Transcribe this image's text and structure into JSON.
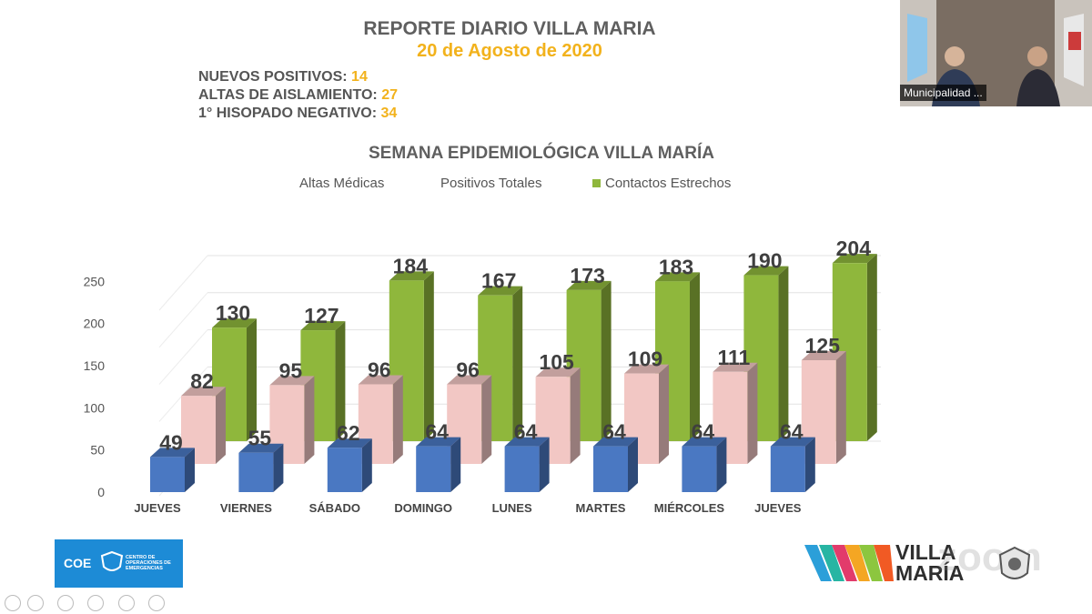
{
  "report": {
    "title": "REPORTE DIARIO VILLA MARIA",
    "date": "20 de Agosto de 2020",
    "stats": [
      {
        "label": "NUEVOS POSITIVOS:",
        "value": "14"
      },
      {
        "label": "ALTAS DE AISLAMIENTO:",
        "value": "27"
      },
      {
        "label": "1° HISOPADO NEGATIVO:",
        "value": "34"
      }
    ]
  },
  "video": {
    "participant": "Municipalidad ..."
  },
  "footer": {
    "coe": {
      "acronym": "COE",
      "subtitle": "CENTRO DE OPERACIONES DE EMERGENCIAS"
    },
    "brand": {
      "line1": "VILLA",
      "line2": "MARÍA"
    },
    "watermark": "zoom"
  },
  "colors": {
    "altas": "#4a78c2",
    "positivos": "#f2c7c4",
    "contactos": "#8fb73c",
    "accent": "#f2b21c"
  },
  "chart_data": {
    "type": "bar",
    "title": "SEMANA EPIDEMIOLÓGICA VILLA MARÍA",
    "categories": [
      "JUEVES",
      "VIERNES",
      "SÁBADO",
      "DOMINGO",
      "LUNES",
      "MARTES",
      "MIÉRCOLES",
      "JUEVES"
    ],
    "series": [
      {
        "name": "Altas Médicas",
        "values": [
          49,
          55,
          62,
          64,
          64,
          64,
          64,
          64
        ]
      },
      {
        "name": "Positivos Totales",
        "values": [
          82,
          95,
          96,
          96,
          105,
          109,
          111,
          125
        ]
      },
      {
        "name": "Contactos Estrechos",
        "values": [
          130,
          127,
          184,
          167,
          173,
          183,
          190,
          204
        ]
      }
    ],
    "yticks": [
      0,
      50,
      100,
      150,
      200,
      250
    ],
    "ylim": [
      0,
      250
    ],
    "legend": "top"
  }
}
